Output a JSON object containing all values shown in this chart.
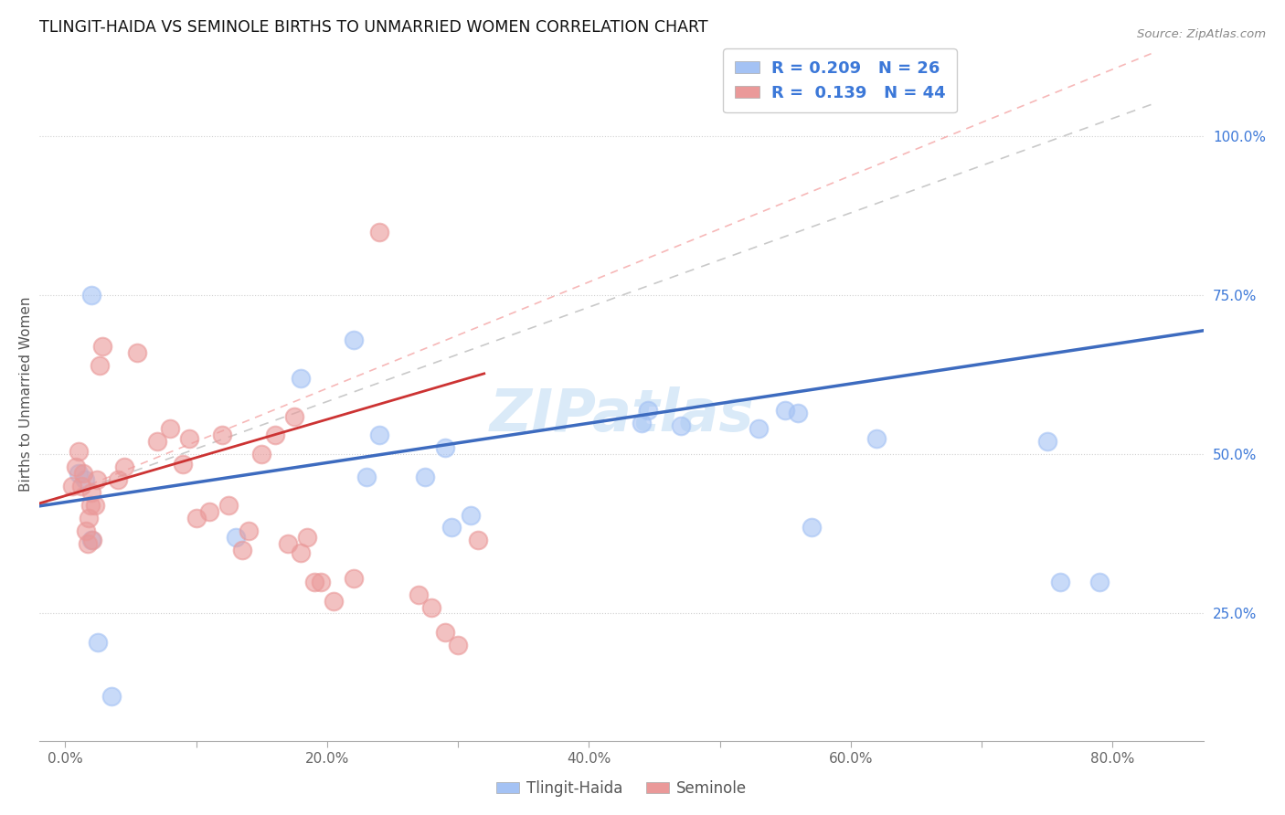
{
  "title": "TLINGIT-HAIDA VS SEMINOLE BIRTHS TO UNMARRIED WOMEN CORRELATION CHART",
  "source": "Source: ZipAtlas.com",
  "ylabel": "Births to Unmarried Women",
  "x_tick_labels": [
    "0.0%",
    "20.0%",
    "40.0%",
    "60.0%",
    "80.0%"
  ],
  "x_tick_vals": [
    0.0,
    20.0,
    40.0,
    60.0,
    80.0
  ],
  "y_tick_labels": [
    "25.0%",
    "50.0%",
    "75.0%",
    "100.0%"
  ],
  "y_tick_vals": [
    25.0,
    50.0,
    75.0,
    100.0
  ],
  "xlim": [
    -2.0,
    87.0
  ],
  "ylim": [
    5.0,
    114.0
  ],
  "blue_color": "#a4c2f4",
  "pink_color": "#ea9999",
  "blue_line_color": "#3d6bbf",
  "pink_line_color": "#cc3333",
  "legend_text_color": "#3c78d8",
  "watermark_color": "#daeaf8",
  "tlingit_x": [
    1.0,
    1.5,
    2.0,
    2.0,
    2.5,
    13.0,
    18.0,
    22.0,
    23.0,
    24.0,
    27.5,
    29.0,
    29.5,
    31.0,
    44.0,
    44.5,
    47.0,
    53.0,
    55.0,
    56.0,
    57.0,
    62.0,
    75.0,
    76.0,
    79.0,
    3.5
  ],
  "tlingit_y": [
    47.0,
    46.0,
    36.5,
    75.0,
    20.5,
    37.0,
    62.0,
    68.0,
    46.5,
    53.0,
    46.5,
    51.0,
    38.5,
    40.5,
    55.0,
    57.0,
    54.5,
    54.0,
    57.0,
    56.5,
    38.5,
    52.5,
    52.0,
    30.0,
    30.0,
    12.0
  ],
  "seminole_x": [
    0.5,
    0.8,
    1.0,
    1.2,
    1.4,
    1.6,
    1.7,
    1.8,
    1.9,
    2.0,
    2.1,
    2.3,
    2.4,
    2.6,
    2.8,
    4.0,
    4.5,
    5.5,
    7.0,
    8.0,
    9.0,
    9.5,
    10.0,
    11.0,
    12.0,
    12.5,
    13.5,
    14.0,
    15.0,
    16.0,
    17.0,
    17.5,
    18.0,
    18.5,
    19.0,
    19.5,
    20.5,
    22.0,
    24.0,
    27.0,
    28.0,
    29.0,
    30.0,
    31.5
  ],
  "seminole_y": [
    45.0,
    48.0,
    50.5,
    45.0,
    47.0,
    38.0,
    36.0,
    40.0,
    42.0,
    44.0,
    36.5,
    42.0,
    46.0,
    64.0,
    67.0,
    46.0,
    48.0,
    66.0,
    52.0,
    54.0,
    48.5,
    52.5,
    40.0,
    41.0,
    53.0,
    42.0,
    35.0,
    38.0,
    50.0,
    53.0,
    36.0,
    56.0,
    34.5,
    37.0,
    30.0,
    30.0,
    27.0,
    30.5,
    85.0,
    28.0,
    26.0,
    22.0,
    20.0,
    36.5
  ]
}
